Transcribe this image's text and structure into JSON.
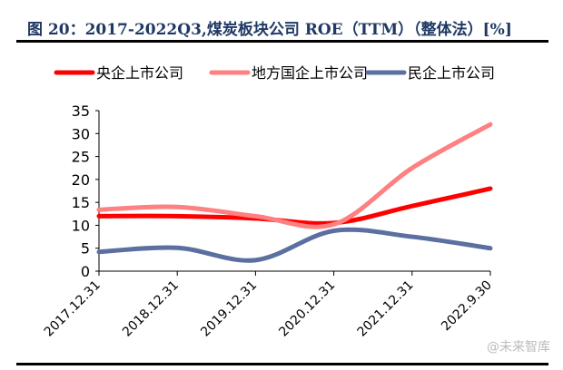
{
  "chart_data": {
    "type": "line",
    "title": "图 20：2017-2022Q3,煤炭板块公司 ROE（TTM）（整体法）[%]",
    "categories": [
      "2017.12.31",
      "2018.12.31",
      "2019.12.31",
      "2020.12.31",
      "2021.12.31",
      "2022.9.30"
    ],
    "ylim": [
      0,
      35
    ],
    "yticks": [
      0,
      5,
      10,
      15,
      20,
      25,
      30,
      35
    ],
    "grid": false,
    "smooth": true,
    "legend_position": "top",
    "series": [
      {
        "name": "央企上市公司",
        "color": "#ff0000",
        "values": [
          12.0,
          12.0,
          11.5,
          10.5,
          14.2,
          18.0
        ]
      },
      {
        "name": "地方国企上市公司",
        "color": "#ff8080",
        "values": [
          13.4,
          14.0,
          12.0,
          10.2,
          22.5,
          32.0
        ]
      },
      {
        "name": "民企上市公司",
        "color": "#5b6fa0",
        "values": [
          4.2,
          5.1,
          2.4,
          8.8,
          7.5,
          5.0
        ]
      }
    ]
  },
  "watermark": "@未来智库"
}
